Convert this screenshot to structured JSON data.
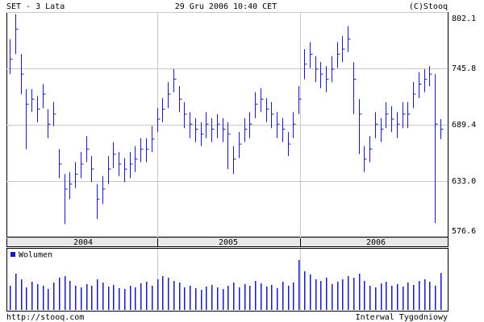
{
  "chart_data": {
    "type": "ohlc",
    "title": "SET - 3 Lata",
    "subtitle": "29 Gru 2006 10:40 CET",
    "credit": "(C)Stooq",
    "footer_left": "http://stooq.com",
    "footer_right": "Interwal Tygodniowy",
    "x_labels": [
      "2004",
      "2005",
      "2006"
    ],
    "color": "#1a1ab8",
    "grid": true,
    "ylim": [
      576.6,
      802.1
    ],
    "yticks": [
      {
        "value": 576.6,
        "label": "576.6"
      },
      {
        "value": 633.0,
        "label": "633.0"
      },
      {
        "value": 689.4,
        "label": "689.4"
      },
      {
        "value": 745.8,
        "label": "745.8"
      },
      {
        "value": 802.1,
        "label": "802.1"
      }
    ],
    "high": [
      775,
      800,
      760,
      725,
      725,
      718,
      730,
      705,
      712,
      665,
      640,
      642,
      652,
      662,
      678,
      658,
      630,
      638,
      658,
      672,
      662,
      656,
      662,
      668,
      676,
      676,
      688,
      706,
      716,
      732,
      745,
      728,
      712,
      702,
      696,
      692,
      702,
      696,
      700,
      696,
      692,
      668,
      682,
      696,
      702,
      722,
      726,
      716,
      712,
      702,
      696,
      682,
      702,
      728,
      765,
      772,
      758,
      752,
      748,
      758,
      772,
      778,
      788,
      752,
      715,
      668,
      678,
      702,
      696,
      712,
      708,
      702,
      712,
      712,
      732,
      742,
      745,
      748,
      740,
      695
    ],
    "low": [
      740,
      760,
      720,
      665,
      702,
      692,
      706,
      676,
      688,
      636,
      590,
      615,
      626,
      636,
      652,
      632,
      595,
      610,
      630,
      646,
      638,
      632,
      636,
      642,
      652,
      652,
      662,
      682,
      692,
      706,
      722,
      702,
      686,
      676,
      672,
      668,
      676,
      672,
      676,
      672,
      645,
      640,
      656,
      672,
      676,
      696,
      702,
      692,
      686,
      676,
      672,
      658,
      676,
      700,
      735,
      746,
      732,
      726,
      722,
      732,
      746,
      752,
      762,
      700,
      660,
      642,
      652,
      676,
      672,
      686,
      682,
      676,
      686,
      686,
      706,
      716,
      722,
      728,
      591,
      675
    ],
    "close": [
      755,
      785,
      740,
      710,
      715,
      705,
      720,
      690,
      700,
      650,
      625,
      630,
      640,
      650,
      665,
      645,
      615,
      625,
      645,
      660,
      650,
      645,
      650,
      655,
      665,
      665,
      675,
      695,
      705,
      720,
      735,
      715,
      700,
      690,
      685,
      680,
      690,
      685,
      690,
      685,
      680,
      655,
      670,
      685,
      690,
      710,
      715,
      705,
      700,
      690,
      685,
      670,
      690,
      715,
      750,
      760,
      745,
      740,
      735,
      745,
      760,
      765,
      775,
      735,
      700,
      655,
      665,
      690,
      685,
      700,
      695,
      690,
      700,
      700,
      720,
      730,
      735,
      740,
      690,
      685
    ],
    "volume_label": "Wolumen",
    "volume": [
      30,
      45,
      38,
      28,
      35,
      32,
      30,
      26,
      34,
      40,
      42,
      36,
      30,
      28,
      32,
      30,
      38,
      34,
      29,
      31,
      27,
      26,
      30,
      28,
      33,
      35,
      30,
      38,
      42,
      40,
      36,
      34,
      28,
      30,
      27,
      25,
      29,
      31,
      28,
      26,
      30,
      34,
      28,
      32,
      30,
      36,
      33,
      29,
      31,
      27,
      35,
      30,
      34,
      62,
      48,
      44,
      38,
      36,
      40,
      32,
      35,
      38,
      42,
      40,
      45,
      36,
      30,
      28,
      33,
      35,
      30,
      32,
      29,
      34,
      31,
      36,
      38,
      35,
      30,
      46
    ]
  }
}
